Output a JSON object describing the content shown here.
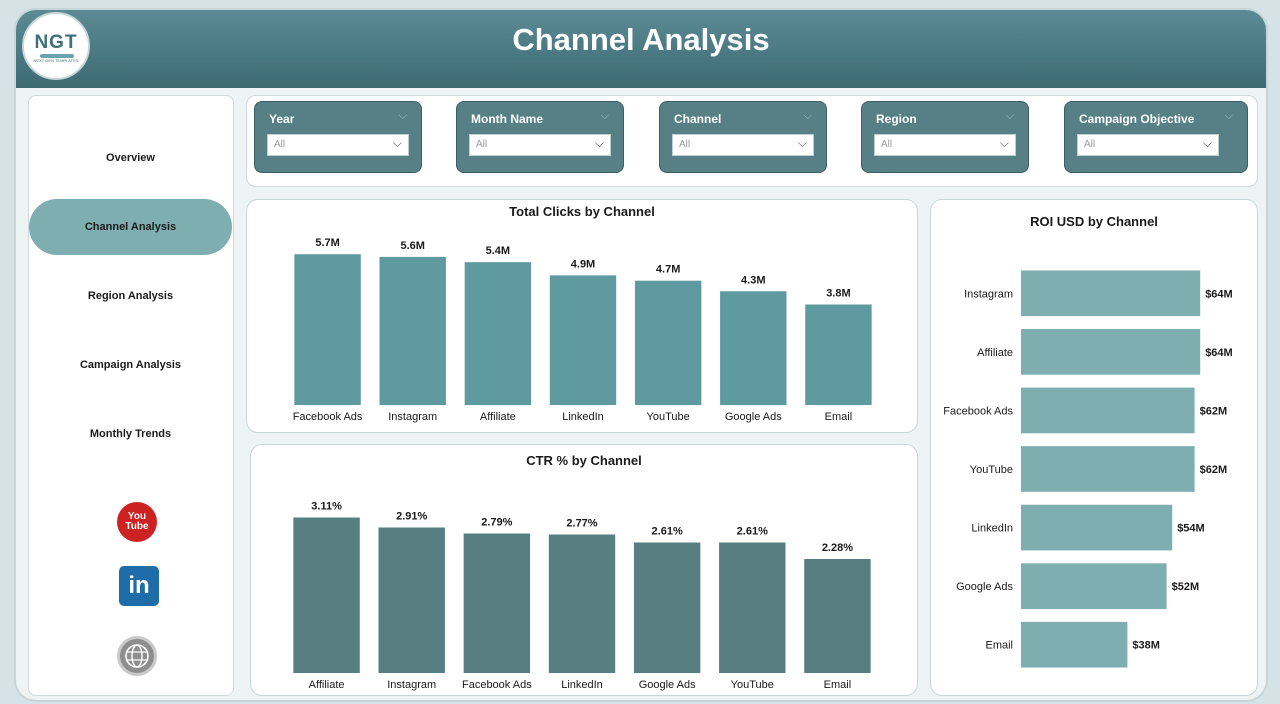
{
  "header": {
    "title": "Channel Analysis",
    "logo_text": "NGT",
    "logo_subtext": "NEXT GEN TEMPLATES"
  },
  "sidebar": {
    "items": [
      {
        "label": "Overview",
        "active": false
      },
      {
        "label": "Channel Analysis",
        "active": true
      },
      {
        "label": "Region Analysis",
        "active": false
      },
      {
        "label": "Campaign Analysis",
        "active": false
      },
      {
        "label": "Monthly Trends",
        "active": false
      }
    ],
    "icons": [
      "youtube-icon",
      "linkedin-icon",
      "www-globe-icon"
    ],
    "yt_text": "You Tube",
    "li_text": "in"
  },
  "slicers": [
    {
      "title": "Year",
      "value": "All"
    },
    {
      "title": "Month Name",
      "value": "All"
    },
    {
      "title": "Channel",
      "value": "All"
    },
    {
      "title": "Region",
      "value": "All"
    },
    {
      "title": "Campaign Objective",
      "value": "All"
    }
  ],
  "colors": {
    "header": "#4a7780",
    "bar_clicks": "#5f9aa0",
    "bar_ctr": "#577f82",
    "bar_roi": "#7faeb0",
    "active_nav": "#7faeb1"
  },
  "chart_data": [
    {
      "type": "bar",
      "title": "Total Clicks by Channel",
      "categories": [
        "Facebook Ads",
        "Instagram",
        "Affiliate",
        "LinkedIn",
        "YouTube",
        "Google Ads",
        "Email"
      ],
      "values": [
        5.7,
        5.6,
        5.4,
        4.9,
        4.7,
        4.3,
        3.8
      ],
      "labels": [
        "5.7M",
        "5.6M",
        "5.4M",
        "4.9M",
        "4.7M",
        "4.3M",
        "3.8M"
      ],
      "unit": "M",
      "ylim": [
        0,
        6.2
      ]
    },
    {
      "type": "bar",
      "title": "CTR % by Channel",
      "categories": [
        "Affiliate",
        "Instagram",
        "Facebook Ads",
        "LinkedIn",
        "Google Ads",
        "YouTube",
        "Email"
      ],
      "values": [
        3.11,
        2.91,
        2.79,
        2.77,
        2.61,
        2.61,
        2.28
      ],
      "labels": [
        "3.11%",
        "2.91%",
        "2.79%",
        "2.77%",
        "2.61%",
        "2.61%",
        "2.28%"
      ],
      "unit": "%",
      "ylim": [
        0,
        3.4
      ]
    },
    {
      "type": "bar",
      "orientation": "horizontal",
      "title": "ROI USD by Channel",
      "categories": [
        "Instagram",
        "Affiliate",
        "Facebook Ads",
        "YouTube",
        "LinkedIn",
        "Google Ads",
        "Email"
      ],
      "values": [
        64,
        64,
        62,
        62,
        54,
        52,
        38
      ],
      "labels": [
        "$64M",
        "$64M",
        "$62M",
        "$62M",
        "$54M",
        "$52M",
        "$38M"
      ],
      "unit": "$M",
      "xlim": [
        0,
        70
      ]
    }
  ]
}
